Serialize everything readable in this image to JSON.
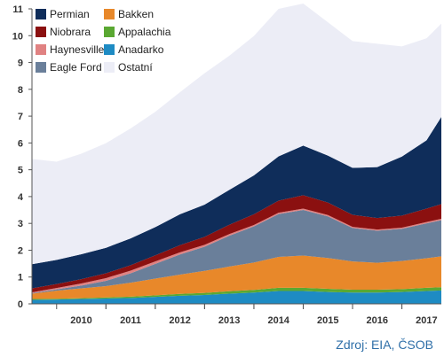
{
  "source_note": "Zdroj: EIA, ČSOB",
  "chart_data": {
    "type": "area",
    "stacked": true,
    "title": "",
    "xlabel": "",
    "ylabel": "",
    "ylim": [
      0,
      11
    ],
    "yticks": [
      0,
      1,
      2,
      3,
      4,
      5,
      6,
      7,
      8,
      9,
      10,
      11
    ],
    "grid": false,
    "legend_position": "top-left",
    "x": [
      2009.5,
      2010.0,
      2010.5,
      2011.0,
      2011.5,
      2012.0,
      2012.5,
      2013.0,
      2013.5,
      2014.0,
      2014.5,
      2015.0,
      2015.5,
      2016.0,
      2016.5,
      2017.0,
      2017.5,
      2017.8
    ],
    "xtick_labels": [
      "2010",
      "2011",
      "2012",
      "2013",
      "2014",
      "2015",
      "2016",
      "2017"
    ],
    "series": [
      {
        "name": "Anadarko",
        "color": "#1e8bc3",
        "values": [
          0.15,
          0.16,
          0.18,
          0.2,
          0.22,
          0.26,
          0.3,
          0.33,
          0.38,
          0.42,
          0.48,
          0.48,
          0.44,
          0.42,
          0.42,
          0.44,
          0.48,
          0.5
        ]
      },
      {
        "name": "Appalachia",
        "color": "#5aa832",
        "values": [
          0.03,
          0.03,
          0.03,
          0.04,
          0.05,
          0.06,
          0.07,
          0.08,
          0.09,
          0.1,
          0.12,
          0.12,
          0.12,
          0.11,
          0.11,
          0.11,
          0.12,
          0.12
        ]
      },
      {
        "name": "Bakken",
        "color": "#e8882a",
        "values": [
          0.2,
          0.3,
          0.37,
          0.42,
          0.52,
          0.62,
          0.72,
          0.82,
          0.92,
          1.02,
          1.15,
          1.2,
          1.15,
          1.05,
          1.0,
          1.05,
          1.1,
          1.15
        ]
      },
      {
        "name": "Eagle Ford",
        "color": "#6a7f9a",
        "values": [
          0.02,
          0.05,
          0.1,
          0.2,
          0.35,
          0.55,
          0.75,
          0.9,
          1.15,
          1.35,
          1.6,
          1.7,
          1.55,
          1.25,
          1.2,
          1.2,
          1.3,
          1.35
        ]
      },
      {
        "name": "Haynesville",
        "color": "#e08282",
        "values": [
          0.03,
          0.05,
          0.08,
          0.1,
          0.1,
          0.09,
          0.08,
          0.07,
          0.06,
          0.05,
          0.05,
          0.05,
          0.05,
          0.04,
          0.04,
          0.04,
          0.05,
          0.05
        ]
      },
      {
        "name": "Niobrara",
        "color": "#8b1010",
        "values": [
          0.15,
          0.15,
          0.16,
          0.18,
          0.2,
          0.23,
          0.27,
          0.3,
          0.35,
          0.4,
          0.45,
          0.5,
          0.47,
          0.45,
          0.43,
          0.45,
          0.5,
          0.55
        ]
      },
      {
        "name": "Permian",
        "color": "#0f2d5a",
        "values": [
          0.9,
          0.9,
          0.93,
          0.95,
          1.0,
          1.05,
          1.15,
          1.2,
          1.3,
          1.45,
          1.65,
          1.85,
          1.75,
          1.75,
          1.9,
          2.2,
          2.55,
          3.25
        ]
      },
      {
        "name": "Ostatní",
        "color": "#ecedf6",
        "values": [
          3.92,
          3.66,
          3.75,
          3.9,
          4.1,
          4.3,
          4.55,
          4.9,
          5.0,
          5.2,
          5.5,
          5.3,
          4.97,
          4.73,
          4.6,
          4.11,
          3.8,
          3.48
        ]
      }
    ],
    "legend": [
      {
        "name": "Permian",
        "color": "#0f2d5a"
      },
      {
        "name": "Bakken",
        "color": "#e8882a"
      },
      {
        "name": "Niobrara",
        "color": "#8b1010"
      },
      {
        "name": "Appalachia",
        "color": "#5aa832"
      },
      {
        "name": "Haynesville",
        "color": "#e08282"
      },
      {
        "name": "Anadarko",
        "color": "#1e8bc3"
      },
      {
        "name": "Eagle Ford",
        "color": "#6a7f9a"
      },
      {
        "name": "Ostatní",
        "color": "#ecedf6"
      }
    ]
  }
}
